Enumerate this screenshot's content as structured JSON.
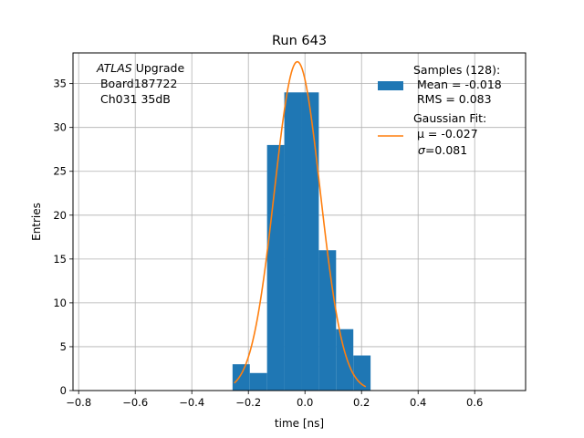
{
  "chart_data": {
    "type": "bar",
    "title": "Run 643",
    "xlabel": "time [ns]",
    "ylabel": "Entries",
    "xlim": [
      -0.82,
      0.78
    ],
    "ylim": [
      0,
      38.5
    ],
    "xticks": [
      -0.8,
      -0.6,
      -0.4,
      -0.2,
      0.0,
      0.2,
      0.4,
      0.6
    ],
    "xtick_labels": [
      "−0.8",
      "−0.6",
      "−0.4",
      "−0.2",
      "0.0",
      "0.2",
      "0.4",
      "0.6"
    ],
    "yticks": [
      0,
      5,
      10,
      15,
      20,
      25,
      30,
      35
    ],
    "ytick_labels": [
      "0",
      "5",
      "10",
      "15",
      "20",
      "25",
      "30",
      "35"
    ],
    "grid": true,
    "histogram": {
      "bin_edges": [
        -0.256,
        -0.195,
        -0.134,
        -0.073,
        -0.012,
        0.049,
        0.11,
        0.171,
        0.232
      ],
      "counts": [
        3,
        2,
        28,
        34,
        34,
        16,
        7,
        4
      ],
      "color": "#1f77b4"
    },
    "gaussian_fit": {
      "amplitude": 37.5,
      "mu": -0.027,
      "sigma": 0.081,
      "x_range": [
        -0.25,
        0.215
      ],
      "color": "#ff7f0e"
    },
    "annotation": {
      "line1_italic": "ATLAS",
      "line1_rest": " Upgrade",
      "line2": " Board187722",
      "line3": " Ch031 35dB"
    },
    "legend": {
      "placement": "top-right",
      "samples": {
        "line1": "Samples (128):",
        "line2": " Mean = -0.018",
        "line3": " RMS = 0.083"
      },
      "fit": {
        "line1": "Gaussian Fit:",
        "line2": " μ = -0.027",
        "line3_sym": "σ",
        "line3_rest": "=0.081"
      }
    }
  }
}
